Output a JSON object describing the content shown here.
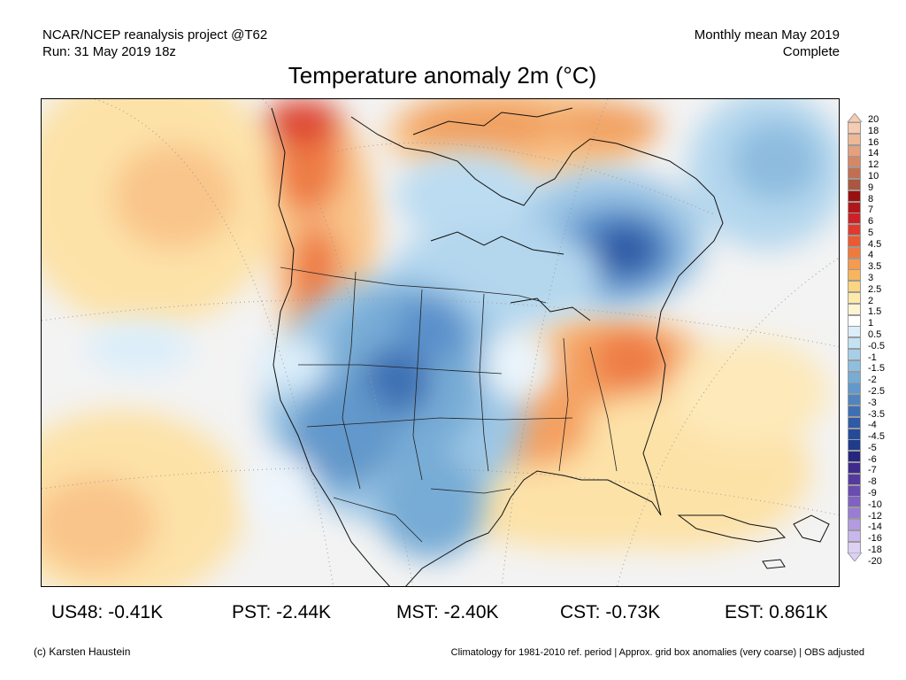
{
  "header": {
    "left_line1": "NCAR/NCEP reanalysis project @T62",
    "left_line2": "Run: 31 May 2019 18z",
    "right_line1": "Monthly mean May 2019",
    "right_line2": "Complete"
  },
  "title": "Temperature anomaly 2m (°C)",
  "legend": {
    "labels": [
      "20",
      "18",
      "16",
      "14",
      "12",
      "10",
      "9",
      "8",
      "7",
      "6",
      "5",
      "4.5",
      "4",
      "3.5",
      "3",
      "2.5",
      "2",
      "1.5",
      "1",
      "0.5",
      "-0.5",
      "-1",
      "-1.5",
      "-2",
      "-2.5",
      "-3",
      "-3.5",
      "-4",
      "-4.5",
      "-5",
      "-6",
      "-7",
      "-8",
      "-9",
      "-10",
      "-12",
      "-14",
      "-16",
      "-18",
      "-20"
    ],
    "colors": [
      "#f6cbb0",
      "#eeb897",
      "#e3a17d",
      "#d48866",
      "#c26f51",
      "#ab563e",
      "#9b0f0f",
      "#b3161a",
      "#cc2227",
      "#df3a2d",
      "#ea5a33",
      "#f07a3d",
      "#f59a4e",
      "#f7b55d",
      "#fbd57f",
      "#fde9ab",
      "#fdf4d2",
      "#ffffff",
      "#dbeefa",
      "#c3e2f4",
      "#a6d0ea",
      "#8ebfe0",
      "#77acd6",
      "#6298cb",
      "#4f84bf",
      "#3e6fb3",
      "#2f5aa5",
      "#244a99",
      "#1f3b8c",
      "#26267f",
      "#3f2b8c",
      "#553a9e",
      "#6a4bb0",
      "#8062c2",
      "#9a7dd3",
      "#b49ae1",
      "#c9b6ec",
      "#ddd0f5"
    ],
    "arrow_top_color": "#f6cbb0",
    "arrow_bottom_color": "#ddd0f5"
  },
  "stats": [
    {
      "label": "US48: -0.41K"
    },
    {
      "label": "PST: -2.44K"
    },
    {
      "label": "MST: -2.40K"
    },
    {
      "label": "CST: -0.73K"
    },
    {
      "label": "EST: 0.861K"
    }
  ],
  "footer": {
    "left": "(c) Karsten Haustein",
    "right": "Climatology for 1981-2010 ref. period | Approx. grid box anomalies (very coarse) | OBS adjusted"
  },
  "map": {
    "region": "North America",
    "field": "2m temperature anomaly, May 2019"
  }
}
